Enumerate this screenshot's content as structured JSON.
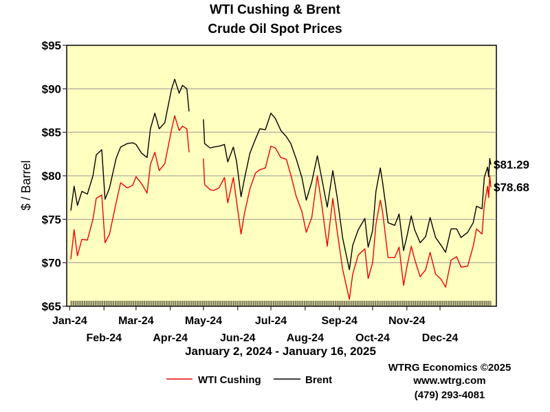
{
  "chart_data": {
    "type": "line",
    "title": [
      "WTI Cushing & Brent",
      "Crude Oil Spot Prices"
    ],
    "subtitle": "January 2, 2024 - January 16, 2025",
    "ylabel": "$ / Barrel",
    "ylim": [
      65,
      95
    ],
    "yticks": [
      "$65",
      "$70",
      "$75",
      "$80",
      "$85",
      "$90",
      "$95"
    ],
    "xlim": [
      "2024-01-02",
      "2025-01-16"
    ],
    "xticks": [
      {
        "date": "2024-01-01",
        "label": "Jan-24",
        "row": 1
      },
      {
        "date": "2024-02-01",
        "label": "Feb-24",
        "row": 2
      },
      {
        "date": "2024-03-01",
        "label": "Mar-24",
        "row": 1
      },
      {
        "date": "2024-04-01",
        "label": "Apr-24",
        "row": 2
      },
      {
        "date": "2024-05-01",
        "label": "May-24",
        "row": 1
      },
      {
        "date": "2024-06-01",
        "label": "Jun-24",
        "row": 2
      },
      {
        "date": "2024-07-01",
        "label": "Jul-24",
        "row": 1
      },
      {
        "date": "2024-08-01",
        "label": "Aug-24",
        "row": 2
      },
      {
        "date": "2024-09-01",
        "label": "Sep-24",
        "row": 1
      },
      {
        "date": "2024-10-01",
        "label": "Oct-24",
        "row": 2
      },
      {
        "date": "2024-11-01",
        "label": "Nov-24",
        "row": 1
      },
      {
        "date": "2024-12-01",
        "label": "Dec-24",
        "row": 2
      }
    ],
    "grid": true,
    "background_color": "#ffffc0",
    "series": [
      {
        "name": "WTI Cushing",
        "color": "#ee0000",
        "end_label": "$78.68",
        "points": [
          [
            "2024-01-02",
            70.4
          ],
          [
            "2024-01-05",
            73.8
          ],
          [
            "2024-01-08",
            70.8
          ],
          [
            "2024-01-12",
            72.7
          ],
          [
            "2024-01-17",
            72.6
          ],
          [
            "2024-01-22",
            75.0
          ],
          [
            "2024-01-25",
            77.4
          ],
          [
            "2024-01-30",
            77.8
          ],
          [
            "2024-02-02",
            72.3
          ],
          [
            "2024-02-06",
            73.3
          ],
          [
            "2024-02-12",
            76.9
          ],
          [
            "2024-02-16",
            79.2
          ],
          [
            "2024-02-22",
            78.6
          ],
          [
            "2024-02-27",
            78.9
          ],
          [
            "2024-03-01",
            79.9
          ],
          [
            "2024-03-06",
            79.1
          ],
          [
            "2024-03-11",
            78.0
          ],
          [
            "2024-03-14",
            81.3
          ],
          [
            "2024-03-18",
            82.7
          ],
          [
            "2024-03-22",
            80.6
          ],
          [
            "2024-03-27",
            81.4
          ],
          [
            "2024-04-02",
            85.2
          ],
          [
            "2024-04-05",
            86.9
          ],
          [
            "2024-04-09",
            85.2
          ],
          [
            "2024-04-12",
            85.7
          ],
          [
            "2024-04-16",
            85.4
          ],
          [
            "2024-04-18",
            82.7
          ],
          null,
          [
            "2024-05-01",
            82.0
          ],
          [
            "2024-05-02",
            79.0
          ],
          [
            "2024-05-07",
            78.4
          ],
          [
            "2024-05-10",
            78.3
          ],
          [
            "2024-05-15",
            78.6
          ],
          [
            "2024-05-20",
            79.8
          ],
          [
            "2024-05-23",
            76.9
          ],
          [
            "2024-05-28",
            79.8
          ],
          [
            "2024-05-31",
            77.0
          ],
          [
            "2024-06-04",
            73.3
          ],
          [
            "2024-06-07",
            75.6
          ],
          [
            "2024-06-12",
            78.5
          ],
          [
            "2024-06-17",
            80.3
          ],
          [
            "2024-06-21",
            80.7
          ],
          [
            "2024-06-26",
            80.9
          ],
          [
            "2024-07-01",
            83.4
          ],
          [
            "2024-07-05",
            83.2
          ],
          [
            "2024-07-10",
            82.1
          ],
          [
            "2024-07-15",
            81.9
          ],
          [
            "2024-07-19",
            80.1
          ],
          [
            "2024-07-24",
            77.6
          ],
          [
            "2024-07-29",
            75.9
          ],
          [
            "2024-08-02",
            73.5
          ],
          [
            "2024-08-07",
            75.2
          ],
          [
            "2024-08-12",
            80.0
          ],
          [
            "2024-08-16",
            76.7
          ],
          [
            "2024-08-21",
            71.9
          ],
          [
            "2024-08-26",
            77.4
          ],
          [
            "2024-08-30",
            73.6
          ],
          [
            "2024-09-04",
            69.2
          ],
          [
            "2024-09-10",
            65.8
          ],
          [
            "2024-09-13",
            68.7
          ],
          [
            "2024-09-18",
            70.9
          ],
          [
            "2024-09-24",
            71.6
          ],
          [
            "2024-09-27",
            68.2
          ],
          [
            "2024-10-01",
            70.0
          ],
          [
            "2024-10-04",
            74.4
          ],
          [
            "2024-10-08",
            77.2
          ],
          [
            "2024-10-10",
            75.9
          ],
          [
            "2024-10-15",
            70.6
          ],
          [
            "2024-10-21",
            70.6
          ],
          [
            "2024-10-25",
            71.8
          ],
          [
            "2024-10-29",
            67.4
          ],
          [
            "2024-11-01",
            69.5
          ],
          [
            "2024-11-05",
            71.9
          ],
          [
            "2024-11-08",
            70.4
          ],
          [
            "2024-11-13",
            68.4
          ],
          [
            "2024-11-18",
            69.2
          ],
          [
            "2024-11-22",
            71.2
          ],
          [
            "2024-11-27",
            68.7
          ],
          [
            "2024-12-02",
            68.1
          ],
          [
            "2024-12-06",
            67.2
          ],
          [
            "2024-12-11",
            70.3
          ],
          [
            "2024-12-16",
            70.7
          ],
          [
            "2024-12-20",
            69.5
          ],
          [
            "2024-12-26",
            69.6
          ],
          [
            "2024-12-31",
            71.9
          ],
          [
            "2025-01-03",
            73.9
          ],
          [
            "2025-01-08",
            73.3
          ],
          [
            "2025-01-10",
            76.6
          ],
          [
            "2025-01-13",
            78.8
          ],
          [
            "2025-01-14",
            77.5
          ],
          [
            "2025-01-15",
            80.0
          ],
          [
            "2025-01-16",
            78.68
          ]
        ]
      },
      {
        "name": "Brent",
        "color": "#000000",
        "end_label": "$81.29",
        "points": [
          [
            "2024-01-02",
            76.0
          ],
          [
            "2024-01-05",
            78.8
          ],
          [
            "2024-01-08",
            76.6
          ],
          [
            "2024-01-12",
            78.2
          ],
          [
            "2024-01-17",
            77.9
          ],
          [
            "2024-01-22",
            80.0
          ],
          [
            "2024-01-25",
            82.4
          ],
          [
            "2024-01-30",
            83.0
          ],
          [
            "2024-02-02",
            77.3
          ],
          [
            "2024-02-06",
            78.6
          ],
          [
            "2024-02-12",
            82.0
          ],
          [
            "2024-02-16",
            83.3
          ],
          [
            "2024-02-22",
            83.7
          ],
          [
            "2024-02-27",
            83.8
          ],
          [
            "2024-03-01",
            83.6
          ],
          [
            "2024-03-06",
            82.6
          ],
          [
            "2024-03-11",
            82.1
          ],
          [
            "2024-03-14",
            85.4
          ],
          [
            "2024-03-18",
            87.2
          ],
          [
            "2024-03-22",
            85.4
          ],
          [
            "2024-03-27",
            86.1
          ],
          [
            "2024-04-02",
            89.9
          ],
          [
            "2024-04-05",
            91.1
          ],
          [
            "2024-04-09",
            89.5
          ],
          [
            "2024-04-12",
            90.4
          ],
          [
            "2024-04-16",
            90.0
          ],
          [
            "2024-04-18",
            87.4
          ],
          null,
          [
            "2024-05-01",
            86.5
          ],
          [
            "2024-05-02",
            83.7
          ],
          [
            "2024-05-07",
            83.2
          ],
          [
            "2024-05-10",
            83.3
          ],
          [
            "2024-05-15",
            83.4
          ],
          [
            "2024-05-20",
            83.6
          ],
          [
            "2024-05-23",
            81.6
          ],
          [
            "2024-05-28",
            83.3
          ],
          [
            "2024-05-31",
            81.6
          ],
          [
            "2024-06-04",
            77.6
          ],
          [
            "2024-06-07",
            79.6
          ],
          [
            "2024-06-12",
            82.6
          ],
          [
            "2024-06-17",
            84.2
          ],
          [
            "2024-06-21",
            85.4
          ],
          [
            "2024-06-26",
            85.3
          ],
          [
            "2024-07-01",
            87.2
          ],
          [
            "2024-07-05",
            86.6
          ],
          [
            "2024-07-10",
            85.2
          ],
          [
            "2024-07-15",
            84.5
          ],
          [
            "2024-07-19",
            83.7
          ],
          [
            "2024-07-24",
            81.9
          ],
          [
            "2024-07-29",
            79.8
          ],
          [
            "2024-08-02",
            77.2
          ],
          [
            "2024-08-07",
            79.3
          ],
          [
            "2024-08-12",
            82.3
          ],
          [
            "2024-08-16",
            79.7
          ],
          [
            "2024-08-21",
            76.4
          ],
          [
            "2024-08-26",
            80.6
          ],
          [
            "2024-08-30",
            77.5
          ],
          [
            "2024-09-04",
            72.8
          ],
          [
            "2024-09-10",
            69.2
          ],
          [
            "2024-09-13",
            72.0
          ],
          [
            "2024-09-18",
            73.8
          ],
          [
            "2024-09-24",
            75.1
          ],
          [
            "2024-09-27",
            71.8
          ],
          [
            "2024-10-01",
            73.7
          ],
          [
            "2024-10-04",
            78.2
          ],
          [
            "2024-10-08",
            80.9
          ],
          [
            "2024-10-10",
            79.3
          ],
          [
            "2024-10-15",
            74.6
          ],
          [
            "2024-10-21",
            74.3
          ],
          [
            "2024-10-25",
            75.6
          ],
          [
            "2024-10-29",
            71.4
          ],
          [
            "2024-11-01",
            73.0
          ],
          [
            "2024-11-05",
            75.4
          ],
          [
            "2024-11-08",
            73.8
          ],
          [
            "2024-11-13",
            72.3
          ],
          [
            "2024-11-18",
            73.0
          ],
          [
            "2024-11-22",
            75.2
          ],
          [
            "2024-11-27",
            72.9
          ],
          [
            "2024-12-02",
            72.0
          ],
          [
            "2024-12-06",
            71.2
          ],
          [
            "2024-12-11",
            73.9
          ],
          [
            "2024-12-16",
            73.9
          ],
          [
            "2024-12-20",
            72.9
          ],
          [
            "2024-12-26",
            73.5
          ],
          [
            "2024-12-31",
            74.6
          ],
          [
            "2025-01-03",
            76.5
          ],
          [
            "2025-01-08",
            76.2
          ],
          [
            "2025-01-10",
            79.8
          ],
          [
            "2025-01-13",
            81.0
          ],
          [
            "2025-01-14",
            79.9
          ],
          [
            "2025-01-15",
            82.0
          ],
          [
            "2025-01-16",
            81.29
          ]
        ]
      }
    ]
  },
  "legend": [
    {
      "label": "WTI Cushing",
      "color": "#ee0000"
    },
    {
      "label": "Brent",
      "color": "#000000"
    }
  ],
  "credits": [
    "WTRG Economics ©2025",
    "www.wtrg.com",
    "(479) 293-4081"
  ]
}
